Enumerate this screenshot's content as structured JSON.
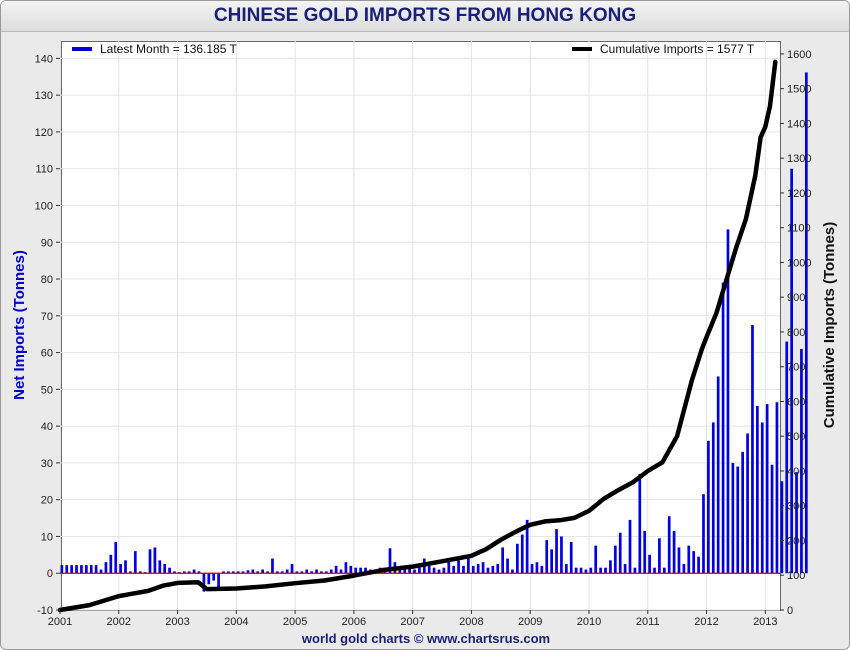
{
  "chart_data": {
    "type": "bar+line",
    "title": "CHINESE GOLD IMPORTS FROM HONG KONG",
    "footer": "world gold charts © www.chartsrus.com",
    "ylabel_left": "Net Imports (Tonnes)",
    "ylabel_right": "Cumulative Imports (Tonnes)",
    "ylim_left": [
      -10,
      145
    ],
    "ylim_right": [
      0,
      1640
    ],
    "xlim": [
      2001,
      2013.25
    ],
    "yticks_left": [
      -10,
      0,
      10,
      20,
      30,
      40,
      50,
      60,
      70,
      80,
      90,
      100,
      110,
      120,
      130,
      140
    ],
    "yticks_right": [
      0,
      100,
      200,
      300,
      400,
      500,
      600,
      700,
      800,
      900,
      1000,
      1100,
      1200,
      1300,
      1400,
      1500,
      1600
    ],
    "xticks": [
      2001,
      2002,
      2003,
      2004,
      2005,
      2006,
      2007,
      2008,
      2009,
      2010,
      2011,
      2012,
      2013
    ],
    "grid": true,
    "colors": {
      "bars": "#0000dd",
      "line": "#000000",
      "zero_line": "#cc0000",
      "title": "#1a1f78",
      "left_axis": "#0000cc"
    },
    "legend": [
      {
        "label": "Latest Month = 136.185 T",
        "series": "monthly",
        "position": "top-left"
      },
      {
        "label": "Cumulative Imports  = 1577 T",
        "series": "cumulative",
        "position": "top-right"
      }
    ],
    "series": [
      {
        "name": "monthly",
        "axis": "left",
        "start": 2001.0,
        "step_months": 1,
        "values": [
          2.2,
          2.2,
          2.2,
          2.2,
          2.2,
          2.2,
          2.2,
          2.2,
          1.0,
          3.0,
          5.0,
          8.5,
          2.5,
          3.5,
          0.5,
          6.0,
          0.5,
          0.3,
          6.5,
          7.0,
          3.5,
          2.5,
          1.5,
          0.5,
          0.3,
          0.5,
          0.5,
          1.0,
          0.5,
          -5.0,
          -3.0,
          -2.0,
          -4.0,
          0.5,
          0.5,
          0.5,
          0.5,
          0.5,
          0.8,
          1.0,
          0.5,
          1.0,
          0.5,
          4.0,
          0.5,
          0.5,
          1.0,
          2.5,
          0.5,
          0.5,
          1.0,
          0.5,
          1.0,
          0.5,
          0.5,
          1.0,
          2.0,
          1.0,
          3.0,
          2.0,
          1.5,
          1.5,
          1.5,
          1.0,
          1.0,
          1.5,
          1.0,
          6.8,
          3.0,
          1.5,
          2.0,
          2.0,
          1.0,
          2.0,
          4.0,
          2.0,
          1.5,
          1.0,
          1.5,
          4.0,
          2.0,
          3.5,
          2.0,
          4.0,
          2.0,
          2.5,
          3.0,
          1.5,
          2.0,
          2.5,
          7.0,
          4.0,
          1.0,
          8.0,
          10.5,
          14.5,
          2.5,
          3.0,
          2.0,
          9.0,
          6.5,
          12.0,
          10.0,
          2.5,
          8.5,
          1.5,
          1.5,
          1.0,
          1.5,
          7.5,
          1.5,
          1.5,
          3.5,
          7.5,
          11.0,
          2.5,
          14.5,
          1.5,
          27.0,
          11.5,
          5.0,
          1.5,
          9.5,
          1.5,
          15.5,
          11.5,
          7.0,
          2.5,
          7.5,
          6.0,
          4.5,
          21.5,
          36.0,
          41.0,
          53.5,
          79.0,
          93.5,
          30.0,
          29.0,
          33.0,
          38.0,
          67.5,
          45.5,
          41.0,
          46.0,
          29.5,
          46.5,
          25.0,
          63.0,
          110.0,
          27.5,
          61.0,
          136.185
        ]
      },
      {
        "name": "cumulative",
        "axis": "right",
        "points": [
          [
            2001.0,
            0
          ],
          [
            2001.5,
            14
          ],
          [
            2002.0,
            40
          ],
          [
            2002.5,
            55
          ],
          [
            2002.75,
            70
          ],
          [
            2003.0,
            78
          ],
          [
            2003.35,
            80
          ],
          [
            2003.5,
            60
          ],
          [
            2004.0,
            62
          ],
          [
            2004.5,
            68
          ],
          [
            2005.0,
            77
          ],
          [
            2005.5,
            85
          ],
          [
            2006.0,
            99
          ],
          [
            2006.5,
            115
          ],
          [
            2007.0,
            125
          ],
          [
            2007.5,
            140
          ],
          [
            2008.0,
            156
          ],
          [
            2008.25,
            175
          ],
          [
            2008.5,
            202
          ],
          [
            2008.75,
            225
          ],
          [
            2009.0,
            245
          ],
          [
            2009.25,
            255
          ],
          [
            2009.5,
            258
          ],
          [
            2009.75,
            265
          ],
          [
            2010.0,
            285
          ],
          [
            2010.25,
            320
          ],
          [
            2010.5,
            345
          ],
          [
            2010.75,
            368
          ],
          [
            2011.0,
            400
          ],
          [
            2011.25,
            425
          ],
          [
            2011.5,
            500
          ],
          [
            2011.75,
            660
          ],
          [
            2011.92,
            750
          ],
          [
            2012.0,
            785
          ],
          [
            2012.17,
            855
          ],
          [
            2012.33,
            945
          ],
          [
            2012.5,
            1040
          ],
          [
            2012.67,
            1125
          ],
          [
            2012.83,
            1250
          ],
          [
            2012.92,
            1360
          ],
          [
            2013.0,
            1390
          ],
          [
            2013.08,
            1450
          ],
          [
            2013.17,
            1577
          ]
        ]
      }
    ]
  }
}
